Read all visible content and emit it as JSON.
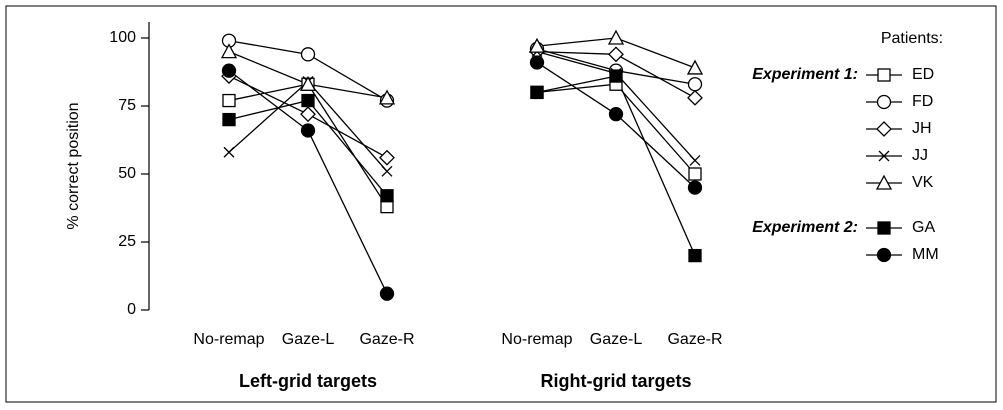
{
  "chart_data": {
    "type": "line",
    "ylabel": "% correct position",
    "ylim": [
      0,
      100
    ],
    "yticks": [
      0,
      25,
      50,
      75,
      100
    ],
    "grid": false,
    "color": "#000000",
    "legend_title": "Patients:",
    "legend": "right",
    "panels": [
      {
        "title": "Left-grid targets",
        "categories": [
          "No-remap",
          "Gaze-L",
          "Gaze-R"
        ]
      },
      {
        "title": "Right-grid targets",
        "categories": [
          "No-remap",
          "Gaze-L",
          "Gaze-R"
        ]
      }
    ],
    "experiments": [
      {
        "label": "Experiment 1:",
        "series": [
          {
            "name": "ED",
            "marker": "square",
            "filled": false,
            "values": [
              [
                77,
                83,
                38
              ],
              [
                80,
                83,
                50
              ]
            ]
          },
          {
            "name": "FD",
            "marker": "circle",
            "filled": false,
            "values": [
              [
                99,
                94,
                77
              ],
              [
                96,
                88,
                83
              ]
            ]
          },
          {
            "name": "JH",
            "marker": "diamond",
            "filled": false,
            "values": [
              [
                86,
                72,
                56
              ],
              [
                95,
                94,
                78
              ]
            ]
          },
          {
            "name": "JJ",
            "marker": "x",
            "filled": false,
            "values": [
              [
                58,
                84,
                51
              ],
              [
                95,
                87,
                55
              ]
            ]
          },
          {
            "name": "VK",
            "marker": "triangle",
            "filled": false,
            "values": [
              [
                95,
                83,
                78
              ],
              [
                97,
                100,
                89
              ]
            ]
          }
        ]
      },
      {
        "label": "Experiment 2:",
        "series": [
          {
            "name": "GA",
            "marker": "square",
            "filled": true,
            "values": [
              [
                70,
                77,
                42
              ],
              [
                80,
                86,
                20
              ]
            ]
          },
          {
            "name": "MM",
            "marker": "circle",
            "filled": true,
            "values": [
              [
                88,
                66,
                6
              ],
              [
                91,
                72,
                45
              ]
            ]
          }
        ]
      }
    ]
  }
}
